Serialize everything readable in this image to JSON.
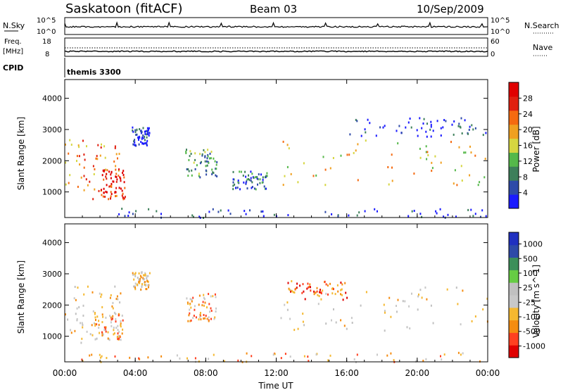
{
  "header": {
    "title": "Saskatoon (fitACF)",
    "beam": "Beam 03",
    "date": "10/Sep/2009"
  },
  "panels": {
    "nsky": {
      "label": "N.Sky",
      "ticks": [
        "10^5",
        "10^0"
      ],
      "right_label": "N.Search",
      "right_ticks": [
        "10^5",
        "10^0"
      ]
    },
    "freq": {
      "label_top": "Freq.",
      "label_bottom": "[MHz]",
      "ticks": [
        "18",
        "8"
      ],
      "right_label": "Nave",
      "right_ticks": [
        "60",
        "0"
      ]
    },
    "cpid": {
      "label": "CPID",
      "value": "themis 3300"
    }
  },
  "colors": {
    "power": [
      "#1a1aff",
      "#2e4aa8",
      "#3d7f5a",
      "#55b84a",
      "#d6d640",
      "#f0a020",
      "#f56a10",
      "#e02010",
      "#e00000"
    ],
    "velocity": [
      "#e00000",
      "#ff4020",
      "#f58c10",
      "#f5b830",
      "#c8c8c8",
      "#c0c0c0",
      "#66cc44",
      "#3d8f5a",
      "#2e4aa8",
      "#2030c0"
    ]
  },
  "chart_data": [
    {
      "type": "heatmap",
      "name": "Power panel",
      "xlabel": "",
      "ylabel": "Slant Range [km]",
      "ylim": [
        180,
        4600
      ],
      "xlim": [
        0,
        24
      ],
      "yticks": [
        "1000",
        "2000",
        "3000",
        "4000"
      ],
      "colorbar": {
        "label": "Power [dB]",
        "ticks": [
          "4",
          "8",
          "12",
          "16",
          "20",
          "24",
          "28"
        ]
      },
      "regions": [
        {
          "x": [
            0,
            3.2
          ],
          "y": [
            800,
            2700
          ],
          "level": 6
        },
        {
          "x": [
            2.0,
            3.4
          ],
          "y": [
            800,
            1800
          ],
          "level": 8
        },
        {
          "x": [
            3.8,
            4.8
          ],
          "y": [
            2500,
            3100
          ],
          "level": 1
        },
        {
          "x": [
            6.8,
            8.6
          ],
          "y": [
            1500,
            2400
          ],
          "level": 3
        },
        {
          "x": [
            9.5,
            11.5
          ],
          "y": [
            1100,
            1700
          ],
          "level": 2
        },
        {
          "x": [
            12.2,
            24
          ],
          "y": [
            1200,
            2700
          ],
          "level": 5
        },
        {
          "x": [
            16,
            24
          ],
          "y": [
            2800,
            3400
          ],
          "level": 1
        },
        {
          "x": [
            3.0,
            24
          ],
          "y": [
            200,
            500
          ],
          "level": 1
        }
      ]
    },
    {
      "type": "heatmap",
      "name": "Velocity panel",
      "xlabel": "Time UT",
      "ylabel": "Slant Range [km]",
      "ylim": [
        180,
        4600
      ],
      "xlim": [
        0,
        24
      ],
      "yticks": [
        "1000",
        "2000",
        "3000",
        "4000"
      ],
      "xticks": [
        "00:00",
        "04:00",
        "08:00",
        "12:00",
        "16:00",
        "20:00",
        "00:00"
      ],
      "colorbar": {
        "label": "Velocity [m s^-1]",
        "ticks": [
          "1000",
          "500",
          "100",
          "25",
          "-25",
          "-100",
          "-500",
          "-1000"
        ]
      },
      "regions": [
        {
          "x": [
            0,
            3.2
          ],
          "y": [
            800,
            2700
          ],
          "level": 4
        },
        {
          "x": [
            1.5,
            3.3
          ],
          "y": [
            900,
            1800
          ],
          "level": 3
        },
        {
          "x": [
            3.8,
            4.8
          ],
          "y": [
            2500,
            3100
          ],
          "level": 4
        },
        {
          "x": [
            6.8,
            8.6
          ],
          "y": [
            1500,
            2400
          ],
          "level": 3
        },
        {
          "x": [
            12.2,
            24
          ],
          "y": [
            1200,
            2700
          ],
          "level": 4
        },
        {
          "x": [
            12.5,
            16
          ],
          "y": [
            2200,
            2800
          ],
          "level": 2
        },
        {
          "x": [
            0,
            24
          ],
          "y": [
            200,
            500
          ],
          "level": 3
        }
      ]
    }
  ]
}
